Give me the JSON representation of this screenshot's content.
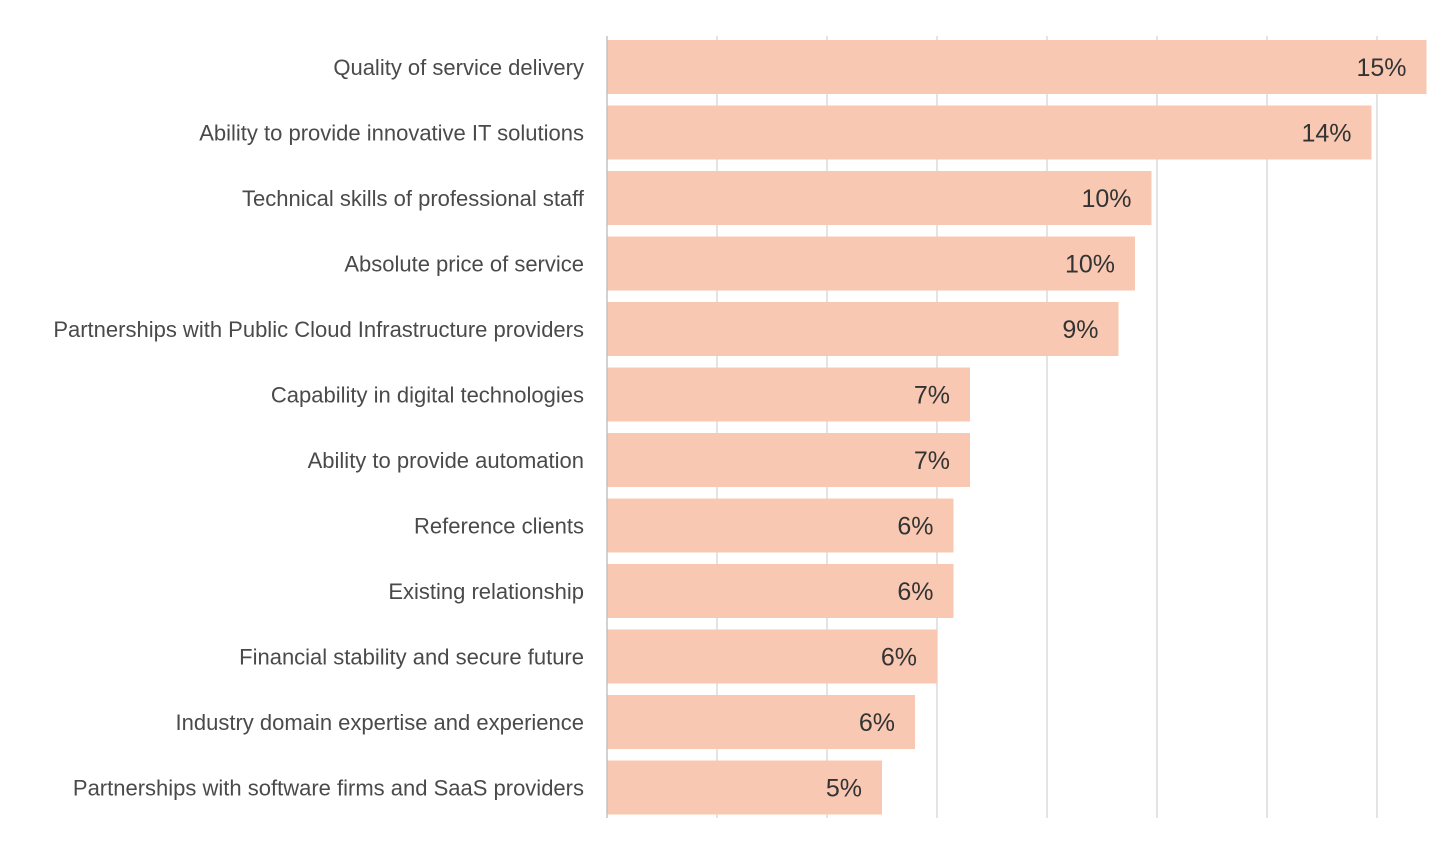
{
  "chart_data": {
    "type": "bar",
    "orientation": "horizontal",
    "categories": [
      "Quality of service delivery",
      "Ability to provide innovative IT solutions",
      "Technical skills of professional staff",
      "Absolute price of service",
      "Partnerships with Public Cloud Infrastructure providers",
      "Capability in digital technologies",
      "Ability to provide automation",
      "Reference clients",
      "Existing relationship",
      "Financial stability and secure future",
      "Industry domain expertise and experience",
      "Partnerships with software firms and SaaS providers"
    ],
    "values": [
      14.9,
      13.9,
      9.9,
      9.6,
      9.3,
      6.6,
      6.6,
      6.3,
      6.3,
      6.0,
      5.6,
      5.0
    ],
    "value_labels": [
      "15%",
      "14%",
      "10%",
      "10%",
      "9%",
      "7%",
      "7%",
      "6%",
      "6%",
      "6%",
      "6%",
      "5%"
    ],
    "title": "",
    "xlabel": "",
    "ylabel": "",
    "xlim": [
      0,
      15
    ],
    "grid": true,
    "legend": "none",
    "colors": {
      "bar": "#f8c8b3",
      "grid": "#d9d9d9",
      "axis": "#bfbfbf",
      "label_text": "#4a4a4a",
      "value_text": "#333333"
    }
  }
}
